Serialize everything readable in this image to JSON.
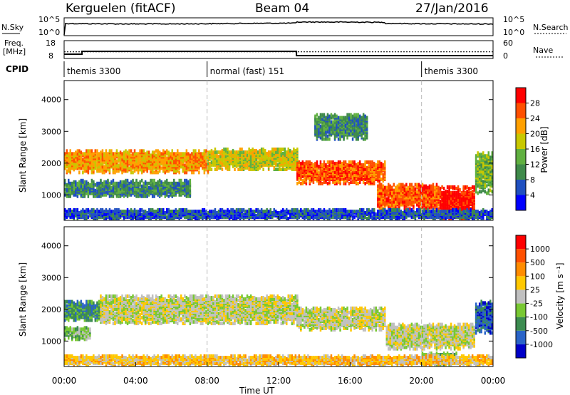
{
  "header": {
    "radar": "Kerguelen (fitACF)",
    "beam": "Beam 04",
    "date": "27/Jan/2016"
  },
  "summary": {
    "nsky_label": "N.Sky",
    "nsky_ticks": [
      "10^5",
      "10^0"
    ],
    "nsearch_label": "N.Search",
    "nsearch_ticks": [
      "10^5",
      "10^0"
    ],
    "freq_label": [
      "Freq.",
      "[MHz]"
    ],
    "freq_ticks": [
      "18",
      "8"
    ],
    "nave_label": "Nave",
    "nave_ticks": [
      "60",
      "0"
    ],
    "cpid_label": "CPID",
    "freq_steps": [
      {
        "t": 0,
        "f": 10
      },
      {
        "t": 1,
        "f": 12
      },
      {
        "t": 13,
        "f": 9
      },
      {
        "t": 24,
        "f": 9
      }
    ],
    "nave_level": 22
  },
  "cpid": [
    {
      "name": "themis 3300",
      "start": 0,
      "end": 8
    },
    {
      "name": "normal (fast) 151",
      "start": 8,
      "end": 20
    },
    {
      "name": "themis 3300",
      "start": 20,
      "end": 24
    }
  ],
  "chart_data": [
    {
      "type": "heatmap",
      "quantity": "power",
      "xlabel": "",
      "ylabel": "Slant Range [km]",
      "xlim": [
        0,
        24
      ],
      "ylim": [
        200,
        4600
      ],
      "y_ticks": [
        "1000",
        "2000",
        "3000",
        "4000"
      ],
      "colorbar_label": "Power [dB]",
      "colorbar_ticks": [
        "4",
        "8",
        "12",
        "16",
        "20",
        "24",
        "28"
      ],
      "colors": [
        "#0000ff",
        "#2050c0",
        "#3f8a4a",
        "#60b040",
        "#c8c800",
        "#ffa000",
        "#ff5000",
        "#ff0000"
      ],
      "bands": [
        {
          "t0": 0.0,
          "t1": 8.0,
          "r0": 1650,
          "r1": 2350,
          "level": 5
        },
        {
          "t0": 8.0,
          "t1": 13.0,
          "r0": 1750,
          "r1": 2400,
          "level": 4
        },
        {
          "t0": 0.0,
          "t1": 7.0,
          "r0": 900,
          "r1": 1400,
          "level": 2
        },
        {
          "t0": 13.0,
          "t1": 18.0,
          "r0": 1300,
          "r1": 2000,
          "level": 6
        },
        {
          "t0": 17.5,
          "t1": 21.0,
          "r0": 500,
          "r1": 1300,
          "level": 6
        },
        {
          "t0": 21.0,
          "t1": 23.0,
          "r0": 200,
          "r1": 1200,
          "level": 7
        },
        {
          "t0": 23.0,
          "t1": 24.0,
          "r0": 1000,
          "r1": 2300,
          "level": 3
        },
        {
          "t0": 14.0,
          "t1": 17.0,
          "r0": 2700,
          "r1": 3500,
          "level": 2
        },
        {
          "t0": 0.0,
          "t1": 24.0,
          "r0": 200,
          "r1": 500,
          "level": 1
        }
      ]
    },
    {
      "type": "heatmap",
      "quantity": "velocity",
      "xlabel": "Time UT",
      "ylabel": "Slant Range [km]",
      "xlim": [
        0,
        24
      ],
      "ylim": [
        200,
        4600
      ],
      "x_ticks": [
        "00:00",
        "04:00",
        "08:00",
        "12:00",
        "16:00",
        "20:00",
        "00:00"
      ],
      "y_ticks": [
        "1000",
        "2000",
        "3000",
        "4000"
      ],
      "colorbar_label": "Velocity [m s⁻¹]",
      "colorbar_ticks": [
        "1000",
        "500",
        "100",
        "25",
        "-25",
        "-100",
        "-500",
        "-1000"
      ],
      "colors": [
        "#0000c8",
        "#2a64c8",
        "#3c8c50",
        "#78c832",
        "#c0c0c0",
        "#ffc800",
        "#ff8c00",
        "#ff5000",
        "#ff0000"
      ],
      "bands": [
        {
          "t0": 2.0,
          "t1": 13.0,
          "r0": 1500,
          "r1": 2400,
          "level": 4
        },
        {
          "t0": 13.0,
          "t1": 18.0,
          "r0": 1300,
          "r1": 2000,
          "level": 4
        },
        {
          "t0": 18.0,
          "t1": 23.0,
          "r0": 700,
          "r1": 1500,
          "level": 4
        },
        {
          "t0": 0.0,
          "t1": 2.0,
          "r0": 1600,
          "r1": 2200,
          "level": 2
        },
        {
          "t0": 0.0,
          "t1": 1.5,
          "r0": 1000,
          "r1": 1400,
          "level": 3
        },
        {
          "t0": 23.0,
          "t1": 24.0,
          "r0": 1200,
          "r1": 2200,
          "level": 1
        },
        {
          "t0": 20.0,
          "t1": 22.0,
          "r0": 200,
          "r1": 600,
          "level": 3
        },
        {
          "t0": 0.0,
          "t1": 24.0,
          "r0": 200,
          "r1": 500,
          "level": 5
        }
      ]
    }
  ]
}
